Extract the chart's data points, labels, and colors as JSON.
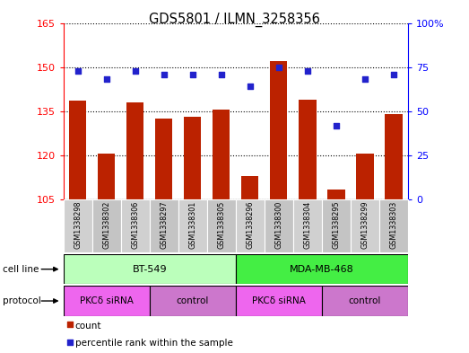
{
  "title": "GDS5801 / ILMN_3258356",
  "samples": [
    "GSM1338298",
    "GSM1338302",
    "GSM1338306",
    "GSM1338297",
    "GSM1338301",
    "GSM1338305",
    "GSM1338296",
    "GSM1338300",
    "GSM1338304",
    "GSM1338295",
    "GSM1338299",
    "GSM1338303"
  ],
  "counts": [
    138.5,
    120.5,
    138.0,
    132.5,
    133.0,
    135.5,
    113.0,
    152.0,
    139.0,
    108.5,
    120.5,
    134.0
  ],
  "percentiles": [
    73,
    68,
    73,
    71,
    71,
    71,
    64,
    75,
    73,
    42,
    68,
    71
  ],
  "ylim_left": [
    105,
    165
  ],
  "ylim_right": [
    0,
    100
  ],
  "yticks_left": [
    105,
    120,
    135,
    150,
    165
  ],
  "yticks_right": [
    0,
    25,
    50,
    75,
    100
  ],
  "ytick_labels_right": [
    "0",
    "25",
    "50",
    "75",
    "100%"
  ],
  "bar_color": "#bb2200",
  "dot_color": "#2222cc",
  "bar_baseline": 105,
  "cell_line_groups": [
    {
      "label": "BT-549",
      "start": 0,
      "end": 6,
      "color": "#bbffbb"
    },
    {
      "label": "MDA-MB-468",
      "start": 6,
      "end": 12,
      "color": "#44ee44"
    }
  ],
  "protocol_groups": [
    {
      "label": "PKCδ siRNA",
      "start": 0,
      "end": 3,
      "color": "#ee66ee"
    },
    {
      "label": "control",
      "start": 3,
      "end": 6,
      "color": "#cc77cc"
    },
    {
      "label": "PKCδ siRNA",
      "start": 6,
      "end": 9,
      "color": "#ee66ee"
    },
    {
      "label": "control",
      "start": 9,
      "end": 12,
      "color": "#cc77cc"
    }
  ],
  "plot_bg_color": "#ffffff",
  "sample_box_color": "#cccccc",
  "legend_items": [
    {
      "label": "count",
      "color": "#bb2200"
    },
    {
      "label": "percentile rank within the sample",
      "color": "#2222cc"
    }
  ]
}
